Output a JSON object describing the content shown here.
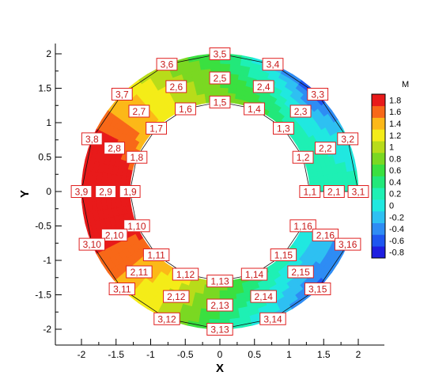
{
  "chart_data": {
    "type": "contour",
    "xlabel": "X",
    "ylabel": "Y",
    "xlim": [
      -2.35,
      2.35
    ],
    "ylim": [
      -2.2,
      2.1
    ],
    "xticks": [
      -2,
      -1.5,
      -1,
      -0.5,
      0,
      0.5,
      1,
      1.5,
      2
    ],
    "xtick_labels": [
      "-2",
      "-1.5",
      "-1",
      "-0.5",
      "0",
      "0.5",
      "1",
      "1.5",
      "2"
    ],
    "yticks": [
      -2,
      -1.5,
      -1,
      -0.5,
      0,
      0.5,
      1,
      1.5,
      2
    ],
    "ytick_labels": [
      "-2",
      "-1.5",
      "-1",
      "-0.5",
      "0",
      "0.5",
      "1",
      "1.5",
      "2"
    ],
    "grid": false,
    "legend_position": "right",
    "colorbar": {
      "title": "M",
      "levels": [
        -0.8,
        -0.6,
        -0.4,
        -0.2,
        0,
        0.2,
        0.4,
        0.6,
        0.8,
        1,
        1.2,
        1.4,
        1.6,
        1.8
      ],
      "labels": [
        "-0.8",
        "-0.6",
        "-0.4",
        "-0.2",
        "0",
        "0.2",
        "0.4",
        "0.6",
        "0.8",
        "1",
        "1.2",
        "1.4",
        "1.6",
        "1.8"
      ],
      "colors": [
        "#1e1ee0",
        "#1e56f0",
        "#2e8cf4",
        "#2ec0f2",
        "#20e8e0",
        "#1ef0b4",
        "#22e87a",
        "#3ae040",
        "#7ad822",
        "#b8dc1a",
        "#f4ec18",
        "#fcb818",
        "#f86818",
        "#e81a1a"
      ]
    },
    "mesh": {
      "grid_size": [
        3,
        16
      ],
      "radii": [
        1.3,
        1.65,
        2.0
      ],
      "angles_deg": [
        0,
        22.5,
        45,
        67.5,
        90,
        112.5,
        135,
        157.5,
        180,
        202.5,
        225,
        247.5,
        270,
        292.5,
        315,
        337.5
      ],
      "values": [
        [
          0.1,
          0.15,
          0.35,
          0.7,
          0.85,
          1.05,
          1.3,
          1.55,
          1.95,
          1.8,
          1.5,
          1.2,
          0.8,
          0.45,
          0.2,
          0.05
        ],
        [
          0.15,
          0.1,
          -0.05,
          0.3,
          0.65,
          1.0,
          1.4,
          1.75,
          1.95,
          1.75,
          1.4,
          1.05,
          0.6,
          0.15,
          -0.2,
          -0.25
        ],
        [
          0.2,
          -0.05,
          -0.75,
          -0.2,
          0.5,
          0.85,
          1.3,
          1.8,
          1.95,
          1.8,
          1.45,
          0.95,
          0.35,
          -0.15,
          -0.55,
          -0.4
        ]
      ]
    },
    "node_labels": [
      [
        "1,1",
        "1,2",
        "1,3",
        "1,4",
        "1,5",
        "1,6",
        "1,7",
        "1,8",
        "1,9",
        "1,10",
        "1,11",
        "1,12",
        "1,13",
        "1,14",
        "1,15",
        "1,16"
      ],
      [
        "2,1",
        "2,2",
        "2,3",
        "2,4",
        "2,5",
        "2,6",
        "2,7",
        "2,8",
        "2,9",
        "2,10",
        "2,11",
        "2,12",
        "2,13",
        "2,14",
        "2,15",
        "2,16"
      ],
      [
        "3,1",
        "3,2",
        "3,3",
        "3,4",
        "3,5",
        "3,6",
        "3,7",
        "3,8",
        "3,9",
        "3,10",
        "3,11",
        "3,12",
        "3,13",
        "3,14",
        "3,15",
        "3,16"
      ]
    ]
  }
}
